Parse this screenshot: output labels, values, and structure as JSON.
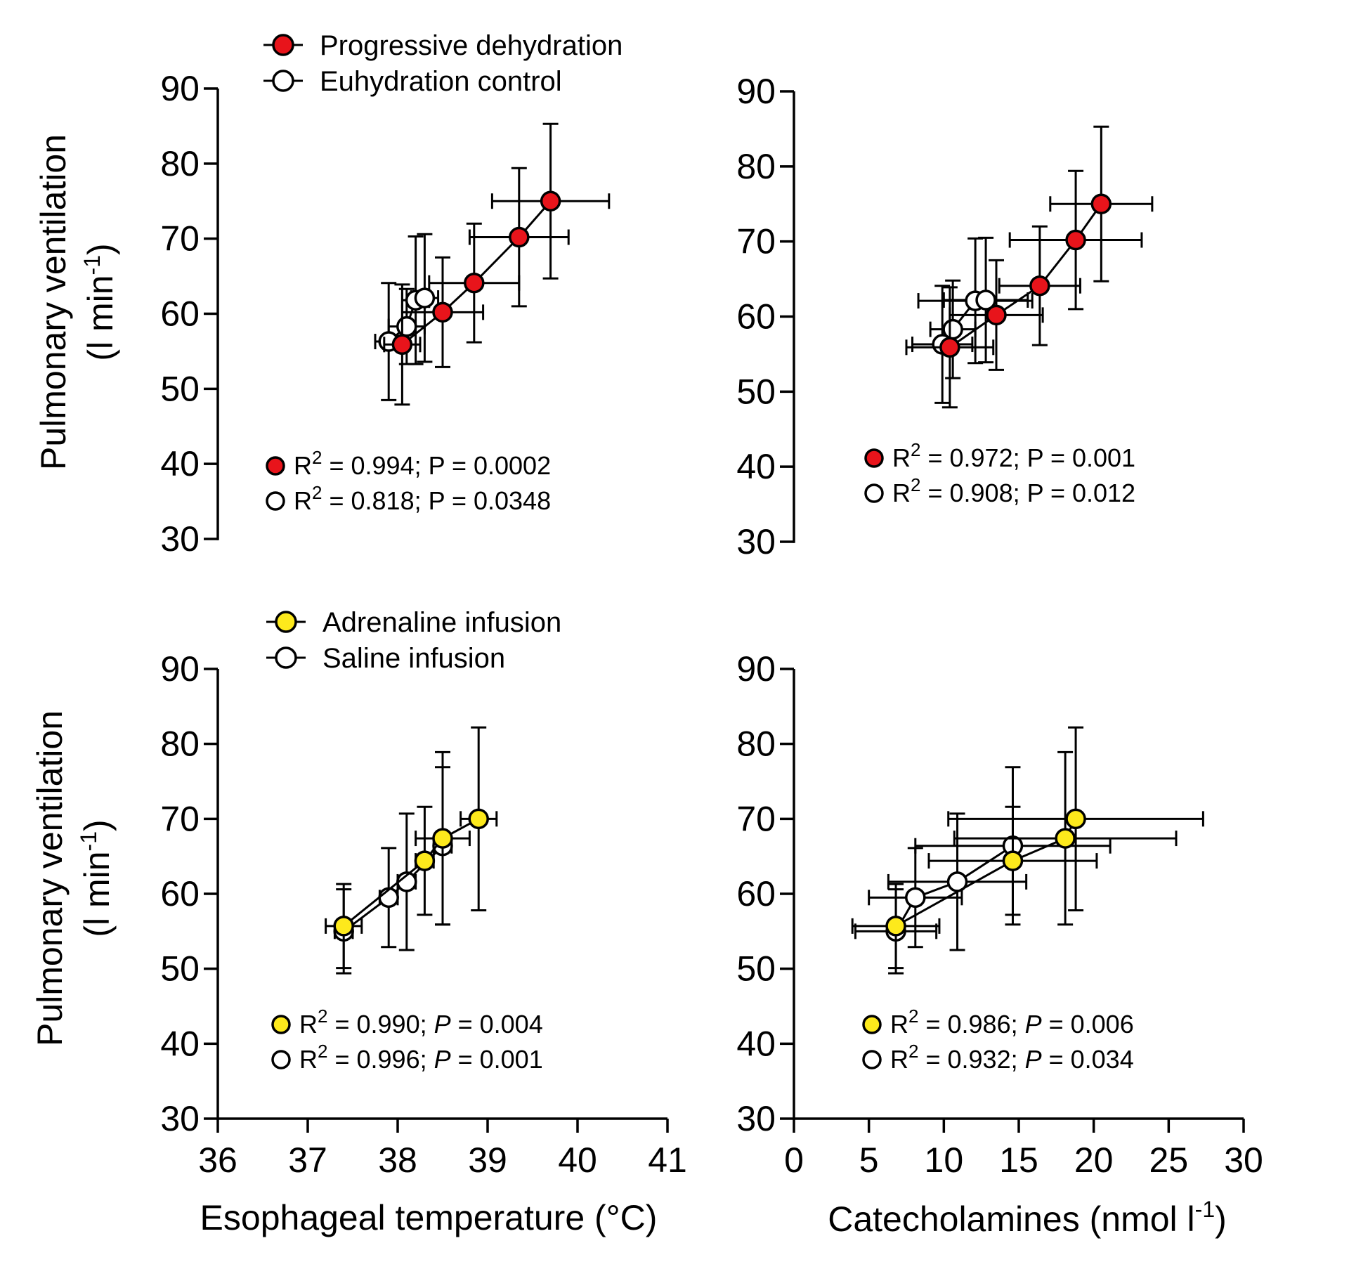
{
  "ylabel_line1": "Pulmonary ventilation",
  "ylabel_line2": "(l min",
  "ylabel_sup": "-1",
  "ylabel_close": ")",
  "xlabel_temp": "Esophageal temperature (°C)",
  "xlabel_cat": "Catecholamines (nmol l",
  "xlabel_cat_sup": "-1",
  "xlabel_cat_close": ")",
  "legend_top": [
    {
      "label": "Progressive dehydration",
      "color": "#e8141b"
    },
    {
      "label": "Euhydration control",
      "color": "#ffffff"
    }
  ],
  "legend_bottom": [
    {
      "label": "Adrenaline infusion",
      "color": "#fde91c"
    },
    {
      "label": "Saline infusion",
      "color": "#ffffff"
    }
  ],
  "chart_data": [
    {
      "type": "scatter",
      "panel": "top-left",
      "xlabel": "",
      "ylabel": "Pulmonary ventilation (l min-1)",
      "xlim": [
        36,
        41
      ],
      "ylim": [
        30,
        90
      ],
      "xticks": [],
      "yticks": [
        30,
        40,
        50,
        60,
        70,
        80,
        90
      ],
      "series": [
        {
          "name": "Euhydration control",
          "color": "#ffffff",
          "points": [
            {
              "x": 37.9,
              "y": 56.3,
              "xerr": 0.15,
              "yerr": 7.8
            },
            {
              "x": 38.1,
              "y": 58.3,
              "xerr": 0.2,
              "yerr": 5.0
            },
            {
              "x": 38.2,
              "y": 61.8,
              "xerr": 0.15,
              "yerr": 8.5
            },
            {
              "x": 38.3,
              "y": 62.1,
              "xerr": 0.15,
              "yerr": 8.5
            }
          ]
        },
        {
          "name": "Progressive dehydration",
          "color": "#e8141b",
          "points": [
            {
              "x": 38.05,
              "y": 55.9,
              "xerr": 0.2,
              "yerr": 8.0
            },
            {
              "x": 38.5,
              "y": 60.2,
              "xerr": 0.45,
              "yerr": 7.3
            },
            {
              "x": 38.85,
              "y": 64.1,
              "xerr": 0.5,
              "yerr": 7.9
            },
            {
              "x": 39.35,
              "y": 70.2,
              "xerr": 0.55,
              "yerr": 9.2
            },
            {
              "x": 39.7,
              "y": 75.0,
              "xerr": 0.65,
              "yerr": 10.3
            }
          ]
        }
      ],
      "stats": [
        {
          "color": "#e8141b",
          "r": "R",
          "sup": "2",
          "text": " = 0.994; P = 0.0002"
        },
        {
          "color": "#ffffff",
          "r": "R",
          "sup": "2",
          "text": " = 0.818; P = 0.0348"
        }
      ]
    },
    {
      "type": "scatter",
      "panel": "top-right",
      "xlabel": "",
      "ylabel": "",
      "xlim": [
        0,
        30
      ],
      "ylim": [
        30,
        90
      ],
      "xticks": [],
      "yticks": [
        30,
        40,
        50,
        60,
        70,
        80,
        90
      ],
      "series": [
        {
          "name": "Euhydration control",
          "color": "#ffffff",
          "points": [
            {
              "x": 9.9,
              "y": 56.3,
              "xerr": 2.0,
              "yerr": 7.8
            },
            {
              "x": 10.6,
              "y": 58.3,
              "xerr": 1.5,
              "yerr": 6.5
            },
            {
              "x": 12.1,
              "y": 62.1,
              "xerr": 3.8,
              "yerr": 8.3
            },
            {
              "x": 12.8,
              "y": 62.2,
              "xerr": 2.8,
              "yerr": 8.3
            }
          ]
        },
        {
          "name": "Progressive dehydration",
          "color": "#e8141b",
          "points": [
            {
              "x": 10.4,
              "y": 55.9,
              "xerr": 2.9,
              "yerr": 8.0
            },
            {
              "x": 13.5,
              "y": 60.2,
              "xerr": 3.1,
              "yerr": 7.3
            },
            {
              "x": 16.4,
              "y": 64.1,
              "xerr": 2.7,
              "yerr": 7.9
            },
            {
              "x": 18.8,
              "y": 70.2,
              "xerr": 4.4,
              "yerr": 9.2
            },
            {
              "x": 20.5,
              "y": 75.0,
              "xerr": 3.4,
              "yerr": 10.3
            }
          ]
        }
      ],
      "stats": [
        {
          "color": "#e8141b",
          "r": "R",
          "sup": "2",
          "text": " = 0.972; P = 0.001"
        },
        {
          "color": "#ffffff",
          "r": "R",
          "sup": "2",
          "text": " = 0.908; P = 0.012"
        }
      ]
    },
    {
      "type": "scatter",
      "panel": "bottom-left",
      "xlabel": "Esophageal temperature (°C)",
      "ylabel": "Pulmonary ventilation (l min-1)",
      "xlim": [
        36,
        41
      ],
      "ylim": [
        30,
        90
      ],
      "xticks": [
        36,
        37,
        38,
        39,
        40,
        41
      ],
      "yticks": [
        30,
        40,
        50,
        60,
        70,
        80,
        90
      ],
      "series": [
        {
          "name": "Saline infusion",
          "color": "#ffffff",
          "points": [
            {
              "x": 37.4,
              "y": 55.0,
              "xerr": 0.1,
              "yerr": 5.6
            },
            {
              "x": 37.9,
              "y": 59.5,
              "xerr": 0.1,
              "yerr": 6.6
            },
            {
              "x": 38.1,
              "y": 61.6,
              "xerr": 0.1,
              "yerr": 9.1
            },
            {
              "x": 38.5,
              "y": 66.4,
              "xerr": 0.1,
              "yerr": 10.5
            }
          ]
        },
        {
          "name": "Adrenaline infusion",
          "color": "#fde91c",
          "points": [
            {
              "x": 37.4,
              "y": 55.7,
              "xerr": 0.2,
              "yerr": 5.6
            },
            {
              "x": 38.3,
              "y": 64.4,
              "xerr": 0.1,
              "yerr": 7.2
            },
            {
              "x": 38.5,
              "y": 67.4,
              "xerr": 0.3,
              "yerr": 11.5
            },
            {
              "x": 38.9,
              "y": 70.0,
              "xerr": 0.2,
              "yerr": 12.2
            }
          ]
        }
      ],
      "stats": [
        {
          "color": "#fde91c",
          "r": "R",
          "sup": "2",
          "text": " = 0.990; ",
          "p": "P",
          "tail": " = 0.004"
        },
        {
          "color": "#ffffff",
          "r": "R",
          "sup": "2",
          "text": " = 0.996; ",
          "p": "P",
          "tail": " = 0.001"
        }
      ]
    },
    {
      "type": "scatter",
      "panel": "bottom-right",
      "xlabel": "Catecholamines (nmol l-1)",
      "ylabel": "",
      "xlim": [
        0,
        30
      ],
      "ylim": [
        30,
        90
      ],
      "xticks": [
        0,
        5,
        10,
        15,
        20,
        25,
        30
      ],
      "yticks": [
        30,
        40,
        50,
        60,
        70,
        80,
        90
      ],
      "series": [
        {
          "name": "Saline infusion",
          "color": "#ffffff",
          "points": [
            {
              "x": 6.8,
              "y": 55.0,
              "xerr": 2.7,
              "yerr": 5.6
            },
            {
              "x": 8.1,
              "y": 59.5,
              "xerr": 3.1,
              "yerr": 6.6
            },
            {
              "x": 10.9,
              "y": 61.6,
              "xerr": 4.6,
              "yerr": 9.1
            },
            {
              "x": 14.6,
              "y": 66.4,
              "xerr": 6.5,
              "yerr": 10.5
            }
          ]
        },
        {
          "name": "Adrenaline infusion",
          "color": "#fde91c",
          "points": [
            {
              "x": 6.8,
              "y": 55.7,
              "xerr": 2.9,
              "yerr": 5.6
            },
            {
              "x": 14.6,
              "y": 64.4,
              "xerr": 5.6,
              "yerr": 7.2
            },
            {
              "x": 18.1,
              "y": 67.4,
              "xerr": 7.4,
              "yerr": 11.5
            },
            {
              "x": 18.8,
              "y": 70.0,
              "xerr": 8.5,
              "yerr": 12.2
            }
          ]
        }
      ],
      "stats": [
        {
          "color": "#fde91c",
          "r": "R",
          "sup": "2",
          "text": " = 0.986; ",
          "p": "P",
          "tail": " = 0.006"
        },
        {
          "color": "#ffffff",
          "r": "R",
          "sup": "2",
          "text": " = 0.932; ",
          "p": "P",
          "tail": " = 0.034"
        }
      ]
    }
  ]
}
